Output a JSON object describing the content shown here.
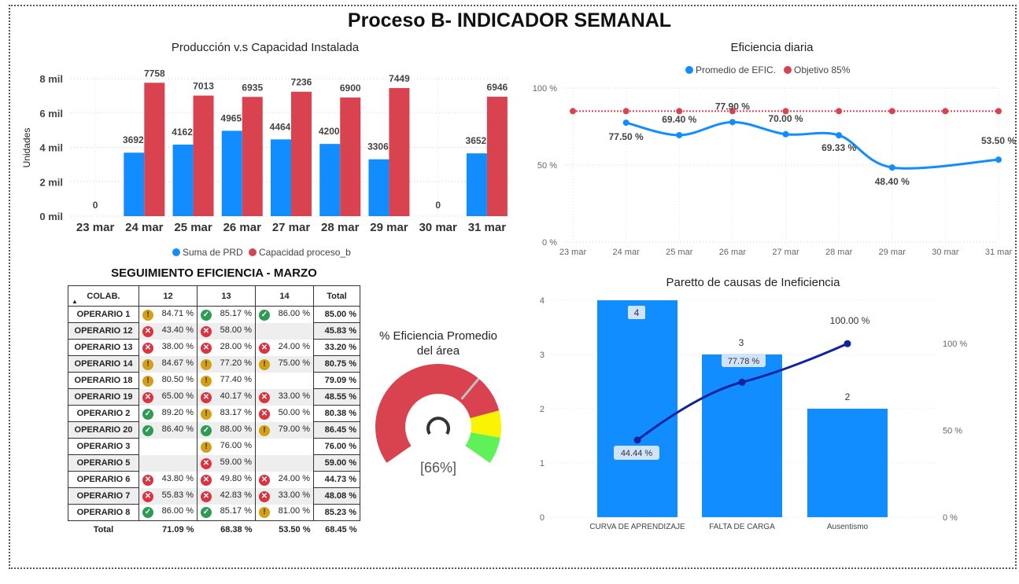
{
  "page_title": "Proceso B- INDICADOR SEMANAL",
  "colors": {
    "prd": "#118dff",
    "cap": "#d9434f",
    "line": "#118dff",
    "target": "#d9434f",
    "pareto_bar": "#118dff",
    "pareto_line": "#12239e"
  },
  "chart_data": [
    {
      "type": "bar",
      "title": "Producción v.s Capacidad Instalada",
      "ylabel": "Unidades",
      "xlabel": "",
      "categories": [
        "23 mar",
        "24 mar",
        "25 mar",
        "26 mar",
        "27 mar",
        "28 mar",
        "29 mar",
        "30 mar",
        "31 mar"
      ],
      "series": [
        {
          "name": "Suma de PRD",
          "values": [
            0,
            3692,
            4162,
            4965,
            4464,
            4200,
            3306,
            0,
            3652
          ]
        },
        {
          "name": "Capacidad proceso_b",
          "values": [
            null,
            7758,
            7013,
            6935,
            7236,
            6900,
            7449,
            null,
            6946
          ]
        }
      ],
      "data_labels": [
        "0",
        "3692",
        "4162",
        "4965",
        "4464",
        "4200",
        "3306",
        "0",
        "3652"
      ],
      "cap_labels": [
        "",
        "7758",
        "7013",
        "6935",
        "7236",
        "6900",
        "7449",
        "",
        "6946"
      ],
      "ylim": [
        0,
        8000
      ],
      "yticks": [
        0,
        2000,
        4000,
        6000,
        8000
      ],
      "ytick_labels": [
        "0 mil",
        "2 mil",
        "4 mil",
        "6 mil",
        "8 mil"
      ],
      "legend_position": "bottom",
      "grid": true
    },
    {
      "type": "line",
      "title": "Eficiencia diaria",
      "categories": [
        "23 mar",
        "24 mar",
        "25 mar",
        "26 mar",
        "27 mar",
        "28 mar",
        "29 mar",
        "30 mar",
        "31 mar"
      ],
      "series": [
        {
          "name": "Promedio de EFIC.",
          "values": [
            null,
            77.5,
            69.4,
            77.9,
            70.0,
            69.33,
            48.4,
            null,
            53.5
          ]
        },
        {
          "name": "Objetivo 85%",
          "values": [
            85,
            85,
            85,
            85,
            85,
            85,
            85,
            85,
            85
          ]
        }
      ],
      "data_labels": [
        "",
        "77.50 %",
        "69.40 %",
        "77.90 %",
        "70.00 %",
        "69.33 %",
        "48.40 %",
        "",
        "53.50 %"
      ],
      "ylim": [
        0,
        100
      ],
      "yticks": [
        0,
        50,
        100
      ],
      "ytick_labels": [
        "0 %",
        "50 %",
        "100 %"
      ],
      "legend_position": "top",
      "grid": true
    },
    {
      "type": "bar",
      "title": "Paretto de causas de Ineficiencia",
      "categories": [
        "CURVA DE APRENDIZAJE",
        "FALTA DE CARGA",
        "Ausentismo"
      ],
      "series": [
        {
          "name": "Causas",
          "values": [
            4,
            3,
            2
          ]
        },
        {
          "name": "Acumulado %",
          "values": [
            44.44,
            77.78,
            100.0
          ]
        }
      ],
      "bar_labels": [
        "4",
        "3",
        "2"
      ],
      "line_labels": [
        "44.44 %",
        "77.78 %",
        "100.00 %"
      ],
      "ylim": [
        0,
        4
      ],
      "yticks": [
        0,
        1,
        2,
        3,
        4
      ],
      "ytick_labels": [
        "0",
        "1",
        "2",
        "3",
        "4"
      ],
      "y2lim": [
        0,
        100
      ],
      "y2ticks": [
        0,
        50,
        100
      ],
      "y2tick_labels": [
        "0 %",
        "50 %",
        "100 %"
      ]
    },
    {
      "type": "gauge",
      "title_line1": "% Eficiencia Promedio",
      "title_line2": "del área",
      "value": 66,
      "value_label": "[66%]",
      "bands": [
        {
          "from": 0,
          "to": 80,
          "color": "#d9434f"
        },
        {
          "from": 80,
          "to": 90,
          "color": "#f9f500"
        },
        {
          "from": 90,
          "to": 100,
          "color": "#5ff05a"
        }
      ]
    }
  ],
  "table": {
    "title": "SEGUIMIENTO EFICIENCIA - MARZO",
    "headers": [
      "COLAB.",
      "12",
      "13",
      "14",
      "Total"
    ],
    "rows": [
      {
        "name": "OPERARIO 1",
        "cells": [
          {
            "v": "84.71 %",
            "s": "warn"
          },
          {
            "v": "85.17 %",
            "s": "ok"
          },
          {
            "v": "86.00 %",
            "s": "ok"
          }
        ],
        "total": "85.00 %"
      },
      {
        "name": "OPERARIO 12",
        "cells": [
          {
            "v": "43.40 %",
            "s": "bad"
          },
          {
            "v": "58.00 %",
            "s": "bad"
          },
          {
            "v": "",
            "s": ""
          }
        ],
        "total": "45.83 %"
      },
      {
        "name": "OPERARIO 13",
        "cells": [
          {
            "v": "38.00 %",
            "s": "bad"
          },
          {
            "v": "28.00 %",
            "s": "bad"
          },
          {
            "v": "24.00 %",
            "s": "bad"
          }
        ],
        "total": "33.20 %"
      },
      {
        "name": "OPERARIO 14",
        "cells": [
          {
            "v": "84.67 %",
            "s": "warn"
          },
          {
            "v": "77.20 %",
            "s": "warn"
          },
          {
            "v": "75.00 %",
            "s": "warn"
          }
        ],
        "total": "80.75 %"
      },
      {
        "name": "OPERARIO 18",
        "cells": [
          {
            "v": "80.50 %",
            "s": "warn"
          },
          {
            "v": "77.40 %",
            "s": "warn"
          },
          {
            "v": "",
            "s": ""
          }
        ],
        "total": "79.09 %"
      },
      {
        "name": "OPERARIO 19",
        "cells": [
          {
            "v": "65.00 %",
            "s": "bad"
          },
          {
            "v": "40.17 %",
            "s": "bad"
          },
          {
            "v": "33.00 %",
            "s": "bad"
          }
        ],
        "total": "48.55 %"
      },
      {
        "name": "OPERARIO 2",
        "cells": [
          {
            "v": "89.20 %",
            "s": "ok"
          },
          {
            "v": "83.17 %",
            "s": "warn"
          },
          {
            "v": "50.00 %",
            "s": "bad"
          }
        ],
        "total": "80.38 %"
      },
      {
        "name": "OPERARIO 20",
        "cells": [
          {
            "v": "86.40 %",
            "s": "ok"
          },
          {
            "v": "88.00 %",
            "s": "ok"
          },
          {
            "v": "79.00 %",
            "s": "warn"
          }
        ],
        "total": "86.45 %"
      },
      {
        "name": "OPERARIO 3",
        "cells": [
          {
            "v": "",
            "s": ""
          },
          {
            "v": "76.00 %",
            "s": "warn"
          },
          {
            "v": "",
            "s": ""
          }
        ],
        "total": "76.00 %"
      },
      {
        "name": "OPERARIO 5",
        "cells": [
          {
            "v": "",
            "s": ""
          },
          {
            "v": "59.00 %",
            "s": "bad"
          },
          {
            "v": "",
            "s": ""
          }
        ],
        "total": "59.00 %"
      },
      {
        "name": "OPERARIO 6",
        "cells": [
          {
            "v": "43.80 %",
            "s": "bad"
          },
          {
            "v": "49.80 %",
            "s": "bad"
          },
          {
            "v": "24.00 %",
            "s": "bad"
          }
        ],
        "total": "44.73 %"
      },
      {
        "name": "OPERARIO 7",
        "cells": [
          {
            "v": "55.83 %",
            "s": "bad"
          },
          {
            "v": "42.83 %",
            "s": "bad"
          },
          {
            "v": "33.00 %",
            "s": "bad"
          }
        ],
        "total": "48.08 %"
      },
      {
        "name": "OPERARIO 8",
        "cells": [
          {
            "v": "86.00 %",
            "s": "ok"
          },
          {
            "v": "85.17 %",
            "s": "ok"
          },
          {
            "v": "81.00 %",
            "s": "warn"
          }
        ],
        "total": "85.23 %"
      }
    ],
    "footer": {
      "name": "Total",
      "cells": [
        "71.09 %",
        "68.38 %",
        "53.50 %"
      ],
      "total": "68.45 %"
    },
    "icon_names": {
      "ok": "check-circle-icon",
      "warn": "exclamation-circle-icon",
      "bad": "x-circle-icon"
    }
  }
}
